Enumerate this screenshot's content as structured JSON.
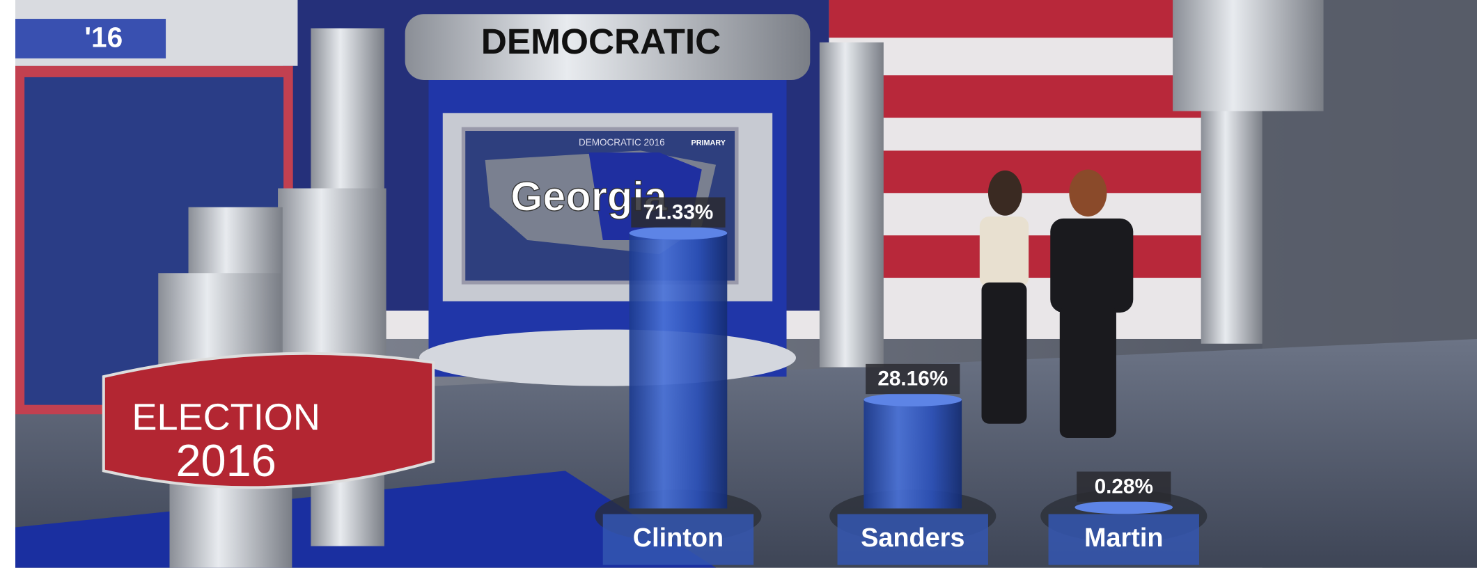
{
  "chart_data": {
    "type": "bar",
    "categories": [
      "Clinton",
      "Sanders",
      "Martin"
    ],
    "values": [
      71.33,
      28.16,
      0.28
    ],
    "value_labels": [
      "71.33%",
      "28.16%",
      "0.28%"
    ],
    "color": "#2b50b8",
    "ylim": [
      0,
      100
    ]
  },
  "scene": {
    "corner_tag": "'16",
    "set_header": "DEMOCRATIC",
    "screen_title": "DEMOCRATIC 2016",
    "screen_badge": "PRIMARY",
    "screen_state": "Georgia",
    "logo_top": "ELECTION",
    "logo_bottom": "2016"
  }
}
